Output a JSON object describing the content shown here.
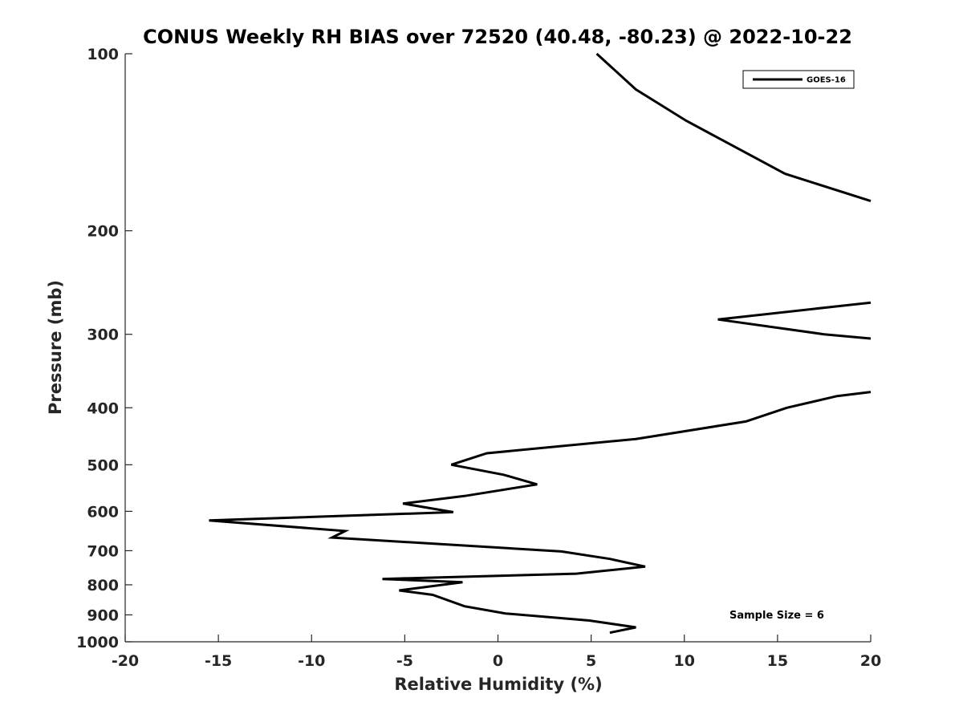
{
  "chart_data": {
    "type": "line",
    "title": "CONUS Weekly RH BIAS over 72520 (40.48, -80.23) @ 2022-10-22",
    "xlabel": "Relative Humidity (%)",
    "ylabel": "Pressure (mb)",
    "xlim": [
      -20,
      20
    ],
    "ylim": [
      100,
      1000
    ],
    "yscale": "log",
    "y_reversed": true,
    "x_ticks": [
      -20,
      -15,
      -10,
      -5,
      0,
      5,
      10,
      15,
      20
    ],
    "x_tick_labels": [
      "-20",
      "-15",
      "-10",
      "-5",
      "0",
      "5",
      "10",
      "15",
      "20"
    ],
    "y_ticks": [
      100,
      200,
      300,
      400,
      500,
      600,
      700,
      800,
      900,
      1000
    ],
    "y_tick_labels": [
      "100",
      "200",
      "300",
      "400",
      "500",
      "600",
      "700",
      "800",
      "900",
      "1000"
    ],
    "grid": false,
    "legend_position": "top-right",
    "annotation": "Sample Size = 6",
    "series": [
      {
        "name": "GOES-16",
        "color": "#000000",
        "segments": [
          [
            [
              5.3,
              100
            ],
            [
              7.4,
              115
            ],
            [
              10.1,
              130
            ],
            [
              15.4,
              160
            ],
            [
              20,
              178
            ]
          ],
          [
            [
              20,
              265
            ],
            [
              11.8,
              283
            ],
            [
              17.5,
              300
            ],
            [
              20,
              305
            ]
          ],
          [
            [
              20,
              376
            ],
            [
              18.2,
              382
            ],
            [
              15.5,
              400
            ],
            [
              13.3,
              422
            ],
            [
              7.4,
              452
            ],
            [
              -0.6,
              478
            ],
            [
              -2.5,
              500
            ],
            [
              0.3,
              520
            ],
            [
              2.1,
              540
            ],
            [
              -1.8,
              565
            ],
            [
              -5.1,
              582
            ],
            [
              -2.4,
              602
            ],
            [
              -15.5,
              622
            ],
            [
              -8.2,
              648
            ],
            [
              -8.9,
              665
            ],
            [
              3.4,
              702
            ],
            [
              6.0,
              723
            ],
            [
              7.9,
              745
            ],
            [
              4.2,
              766
            ],
            [
              -6.2,
              782
            ],
            [
              -1.9,
              792
            ],
            [
              -5.3,
              818
            ],
            [
              -3.5,
              832
            ],
            [
              -1.8,
              870
            ],
            [
              0.4,
              895
            ],
            [
              4.9,
              920
            ],
            [
              7.4,
              945
            ],
            [
              6.0,
              965
            ]
          ]
        ]
      }
    ]
  }
}
